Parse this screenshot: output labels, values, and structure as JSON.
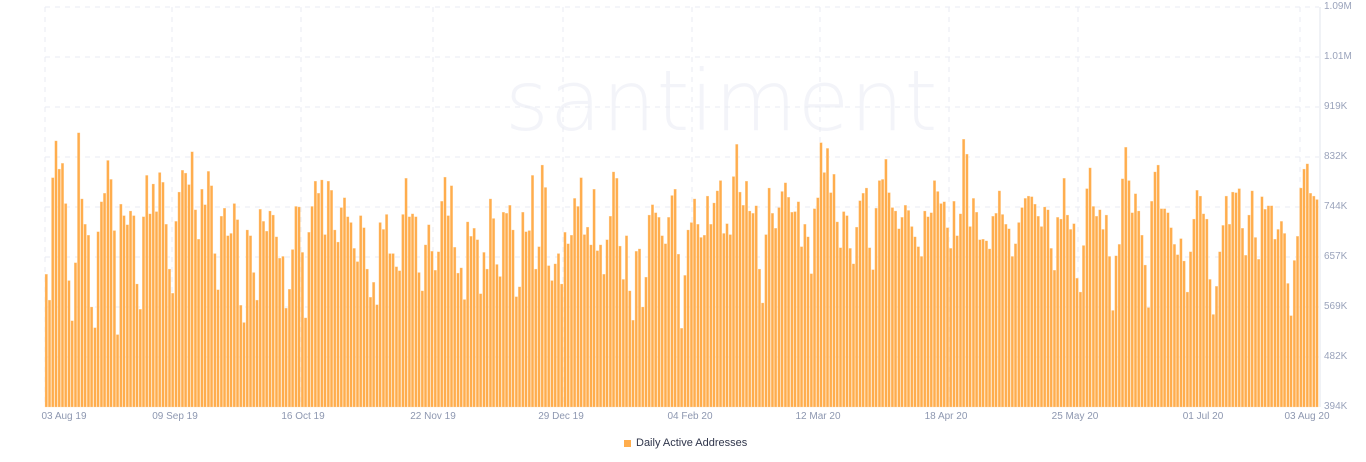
{
  "watermark": "santiment",
  "legend": {
    "label": "Daily Active Addresses",
    "color": "#ffad4d"
  },
  "colors": {
    "bar": "#ffad4d",
    "bar_edge": "#ffd7a6",
    "grid": "#e9ebf3",
    "axis": "#e1e4ee",
    "tick_text": "#9aa3bb"
  },
  "chart_data": {
    "type": "bar",
    "title": "",
    "xlabel": "",
    "ylabel": "",
    "series": [
      {
        "name": "Daily Active Addresses",
        "color": "#ffad4d"
      }
    ],
    "ylim": [
      394,
      1090
    ],
    "y_unit": "K",
    "y_ticks": [
      "394K",
      "482K",
      "569K",
      "657K",
      "744K",
      "832K",
      "919K",
      "1.01M",
      "1.09M"
    ],
    "x_ticks": [
      "03 Aug 19",
      "09 Sep 19",
      "16 Oct 19",
      "22 Nov 19",
      "29 Dec 19",
      "04 Feb 20",
      "12 Mar 20",
      "18 Apr 20",
      "25 May 20",
      "01 Jul 20",
      "03 Aug 20"
    ],
    "x_range": [
      "03 Aug 19",
      "04 Aug 20"
    ],
    "grid": true,
    "legend_position": "bottom",
    "values": [
      625,
      580,
      793,
      857,
      808,
      818,
      748,
      614,
      544,
      645,
      871,
      756,
      712,
      693,
      568,
      532,
      699,
      751,
      766,
      823,
      790,
      701,
      520,
      747,
      727,
      711,
      735,
      727,
      608,
      564,
      725,
      797,
      730,
      782,
      734,
      802,
      785,
      712,
      634,
      592,
      717,
      768,
      806,
      801,
      781,
      838,
      737,
      686,
      773,
      746,
      804,
      779,
      661,
      598,
      726,
      740,
      692,
      696,
      748,
      720,
      571,
      541,
      702,
      692,
      628,
      580,
      738,
      717,
      700,
      735,
      728,
      690,
      653,
      656,
      566,
      599,
      668,
      743,
      742,
      663,
      549,
      698,
      743,
      787,
      766,
      789,
      694,
      787,
      771,
      702,
      681,
      741,
      758,
      725,
      715,
      670,
      647,
      727,
      706,
      634,
      585,
      611,
      572,
      715,
      703,
      729,
      661,
      661,
      638,
      631,
      729,
      792,
      725,
      730,
      725,
      628,
      596,
      676,
      711,
      665,
      632,
      664,
      752,
      794,
      727,
      779,
      672,
      627,
      636,
      581,
      716,
      691,
      705,
      685,
      591,
      663,
      634,
      756,
      722,
      642,
      621,
      733,
      731,
      745,
      702,
      586,
      603,
      733,
      699,
      701,
      797,
      634,
      673,
      815,
      776,
      640,
      614,
      643,
      661,
      608,
      698,
      678,
      693,
      757,
      743,
      793,
      694,
      707,
      676,
      773,
      666,
      676,
      625,
      685,
      726,
      803,
      792,
      674,
      616,
      692,
      596,
      545,
      665,
      669,
      568,
      620,
      728,
      746,
      732,
      724,
      692,
      678,
      724,
      762,
      773,
      660,
      531,
      623,
      702,
      715,
      756,
      712,
      689,
      693,
      761,
      712,
      749,
      770,
      788,
      696,
      713,
      694,
      795,
      851,
      768,
      745,
      787,
      735,
      731,
      744,
      634,
      575,
      694,
      775,
      731,
      705,
      741,
      769,
      784,
      759,
      733,
      734,
      751,
      673,
      712,
      690,
      626,
      739,
      758,
      854,
      802,
      844,
      767,
      799,
      716,
      671,
      734,
      727,
      670,
      643,
      707,
      753,
      766,
      775,
      671,
      633,
      740,
      788,
      790,
      825,
      767,
      741,
      735,
      704,
      724,
      745,
      736,
      708,
      690,
      673,
      656,
      735,
      725,
      732,
      788,
      769,
      748,
      751,
      706,
      670,
      752,
      692,
      730,
      860,
      834,
      708,
      757,
      733,
      685,
      686,
      683,
      669,
      726,
      731,
      770,
      729,
      712,
      704,
      656,
      678,
      715,
      741,
      757,
      761,
      760,
      747,
      726,
      708,
      742,
      737,
      670,
      632,
      724,
      721,
      792,
      728,
      703,
      713,
      618,
      594,
      675,
      774,
      810,
      743,
      726,
      737,
      703,
      728,
      656,
      562,
      657,
      677,
      791,
      846,
      788,
      732,
      765,
      735,
      693,
      641,
      567,
      752,
      803,
      815,
      739,
      739,
      732,
      706,
      677,
      659,
      687,
      648,
      594,
      664,
      721,
      771,
      761,
      730,
      721,
      616,
      555,
      604,
      664,
      710,
      761,
      712,
      768,
      767,
      774,
      705,
      658,
      728,
      770,
      689,
      651,
      760,
      738,
      744,
      744,
      686,
      703,
      717,
      696,
      609,
      553,
      649,
      691,
      775,
      808,
      817,
      766,
      761,
      755
    ]
  }
}
